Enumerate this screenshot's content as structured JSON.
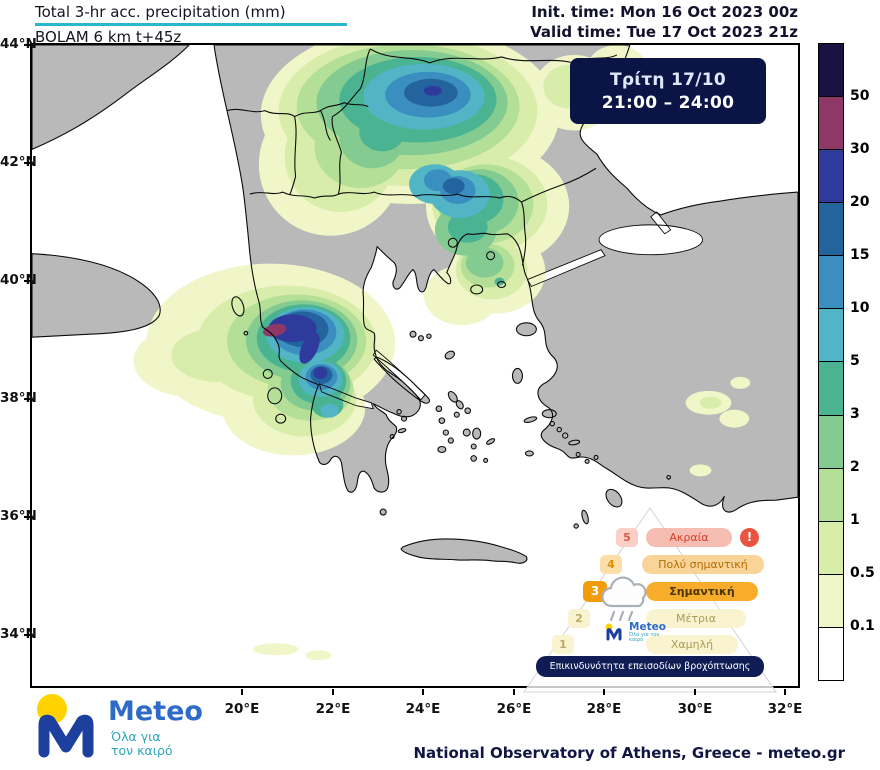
{
  "header": {
    "title": "Total 3-hr acc. precipitation (mm)",
    "subtitle": "BOLAM 6 km t+45z",
    "init_time": "Init. time: Mon 16 Oct 2023 00z",
    "valid_time": "Valid time: Tue 17 Oct 2023 21z"
  },
  "badge": {
    "day": "Τρίτη 17/10",
    "time_range": "21:00 – 24:00"
  },
  "axes": {
    "lat_ticks": [
      "44°N",
      "42°N",
      "40°N",
      "38°N",
      "36°N",
      "34°N"
    ],
    "lon_ticks": [
      "20°E",
      "22°E",
      "24°E",
      "26°E",
      "28°E",
      "30°E",
      "32°E"
    ]
  },
  "colorbar": {
    "unit_values_top_to_bottom": [
      "50",
      "30",
      "20",
      "15",
      "10",
      "5",
      "3",
      "2",
      "1",
      "0.5",
      "0.1"
    ],
    "colors_top_to_bottom": [
      "#191243",
      "#8f3767",
      "#2f3a9d",
      "#23649f",
      "#3b8ec0",
      "#52b5c5",
      "#49b392",
      "#83cb90",
      "#b4df96",
      "#d8edaa",
      "#f0f6c8",
      "#ffffff"
    ]
  },
  "risk_pyramid": {
    "title": "Επικινδυνότητα επεισοδίων βροχόπτωσης",
    "alert_symbol": "!",
    "levels": [
      {
        "number": "5",
        "label": "Ακραία",
        "active": false
      },
      {
        "number": "4",
        "label": "Πολύ σημαντική",
        "active": false
      },
      {
        "number": "3",
        "label": "Σημαντική",
        "active": true
      },
      {
        "number": "2",
        "label": "Μέτρια",
        "active": false
      },
      {
        "number": "1",
        "label": "Χαμηλή",
        "active": false
      }
    ]
  },
  "logo": {
    "name": "Meteo",
    "tagline": "Όλα για τον καιρό"
  },
  "footer": {
    "credit": "National Observatory of Athens, Greece - meteo.gr"
  },
  "chart_data": {
    "type": "heatmap",
    "title": "Total 3-hr acc. precipitation (mm)",
    "legend_values_mm": [
      0.1,
      0.5,
      1,
      2,
      3,
      5,
      10,
      15,
      20,
      30,
      50
    ],
    "notable_features": [
      {
        "region": "northwest Greece (Epirus / Thessaly)",
        "peak_mm": "30-50"
      },
      {
        "region": "central Balkans / Bulgaria",
        "peak_mm": "15-20"
      },
      {
        "region": "Thrace / NE Aegean",
        "peak_mm": "3-5"
      },
      {
        "region": "southwest Turkey coast",
        "peak_mm": "0.1-1"
      }
    ]
  }
}
